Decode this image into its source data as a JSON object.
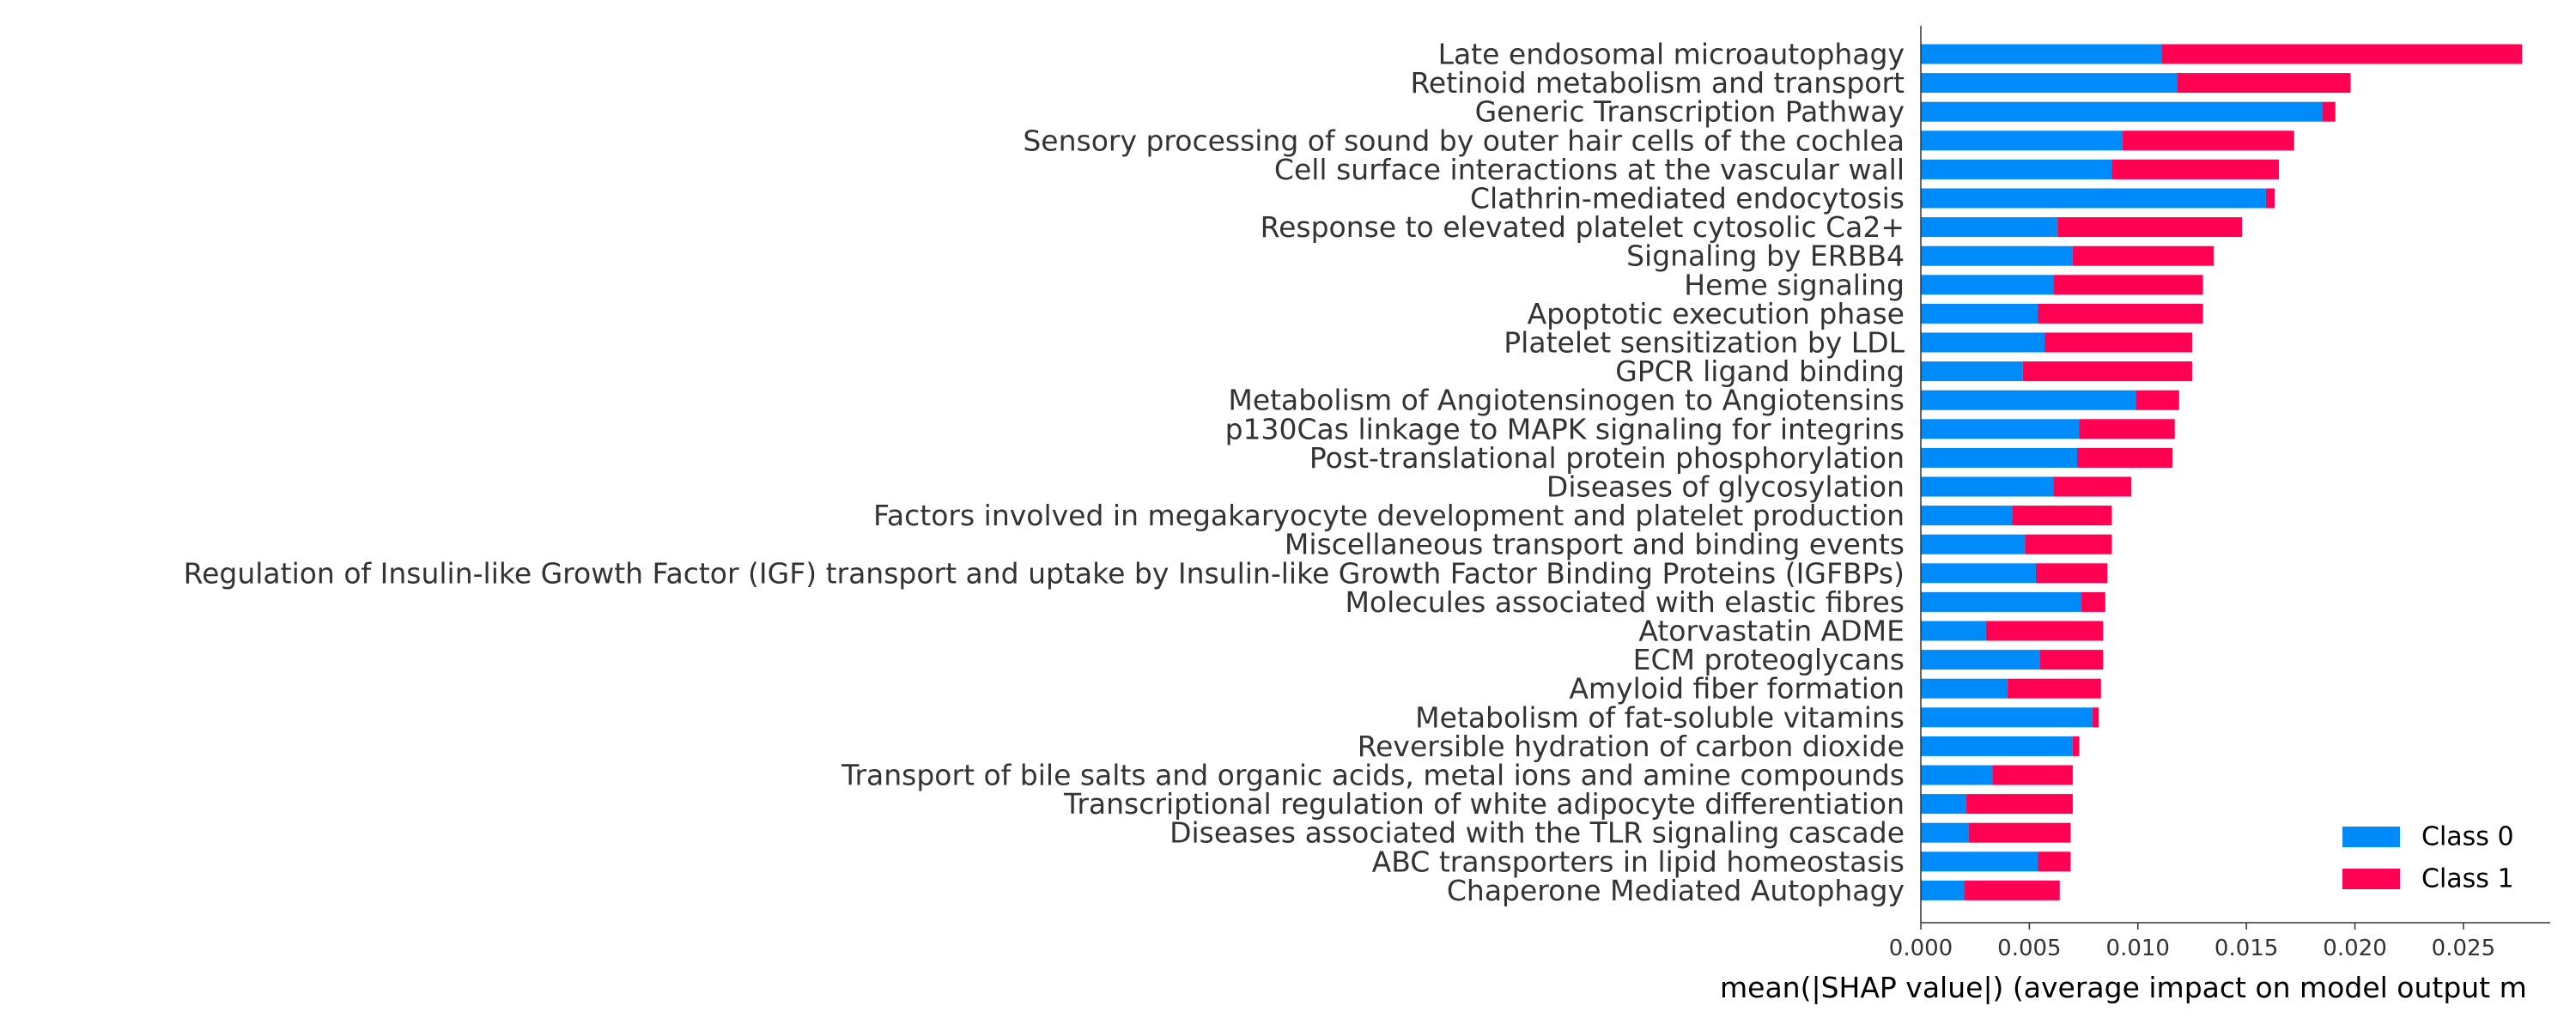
{
  "chart_data": {
    "type": "bar",
    "orientation": "horizontal",
    "stacked": true,
    "title": "",
    "xlabel": "mean(|SHAP value|) (average impact on model output m",
    "ylabel": "",
    "xlim": [
      0,
      0.029
    ],
    "x_ticks": [
      "0.000",
      "0.005",
      "0.010",
      "0.015",
      "0.020",
      "0.025"
    ],
    "x_tick_values": [
      0,
      0.005,
      0.01,
      0.015,
      0.02,
      0.025
    ],
    "grid": false,
    "legend_position": "bottom-right",
    "categories": [
      "Late endosomal microautophagy",
      "Retinoid metabolism and transport",
      "Generic Transcription Pathway",
      "Sensory processing of sound by outer hair cells of the cochlea",
      "Cell surface interactions at the vascular wall",
      "Clathrin-mediated endocytosis",
      "Response to elevated platelet cytosolic Ca2+",
      "Signaling by ERBB4",
      "Heme signaling",
      "Apoptotic execution phase",
      "Platelet sensitization by LDL",
      "GPCR ligand binding",
      "Metabolism of Angiotensinogen to Angiotensins",
      "p130Cas linkage to MAPK signaling for integrins",
      "Post-translational protein phosphorylation",
      "Diseases of glycosylation",
      "Factors involved in megakaryocyte development and platelet production",
      "Miscellaneous transport and binding events",
      "Regulation of Insulin-like Growth Factor (IGF) transport and uptake by Insulin-like Growth Factor Binding Proteins (IGFBPs)",
      "Molecules associated with elastic fibres",
      "Atorvastatin ADME",
      "ECM proteoglycans",
      "Amyloid fiber formation",
      "Metabolism of fat-soluble vitamins",
      "Reversible hydration of carbon dioxide",
      "Transport of bile salts and organic acids, metal ions and amine compounds",
      "Transcriptional regulation of white adipocyte differentiation",
      "Diseases associated with the TLR signaling cascade",
      "ABC transporters in lipid homeostasis",
      "Chaperone Mediated Autophagy"
    ],
    "series": [
      {
        "name": "Class 0",
        "color": "#008bfb",
        "values": [
          0.0111,
          0.0118,
          0.0185,
          0.0093,
          0.0088,
          0.0159,
          0.0063,
          0.007,
          0.0061,
          0.0054,
          0.0057,
          0.0047,
          0.0099,
          0.0073,
          0.0072,
          0.0061,
          0.0042,
          0.0048,
          0.0053,
          0.0074,
          0.003,
          0.0055,
          0.004,
          0.0079,
          0.007,
          0.0033,
          0.0021,
          0.0022,
          0.0054,
          0.002
        ]
      },
      {
        "name": "Class 1",
        "color": "#ff0052",
        "values": [
          0.0166,
          0.008,
          0.0006,
          0.0079,
          0.0077,
          0.0004,
          0.0085,
          0.0065,
          0.0069,
          0.0076,
          0.0068,
          0.0078,
          0.002,
          0.0044,
          0.0044,
          0.0036,
          0.0046,
          0.004,
          0.0033,
          0.0011,
          0.0054,
          0.0029,
          0.0043,
          0.0003,
          0.0003,
          0.0037,
          0.0049,
          0.0047,
          0.0015,
          0.0044
        ]
      }
    ]
  }
}
